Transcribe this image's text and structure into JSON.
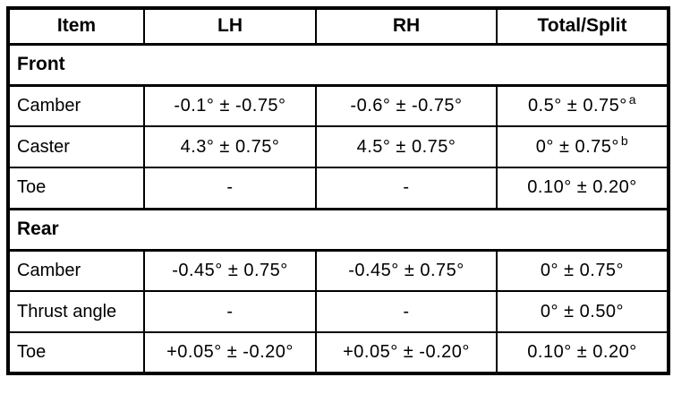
{
  "table": {
    "columns": {
      "item": "Item",
      "lh": "LH",
      "rh": "RH",
      "total": "Total/Split"
    },
    "sections": [
      {
        "label": "Front",
        "rows": [
          {
            "item": "Camber",
            "lh": "-0.1° ± -0.75°",
            "rh": "-0.6° ± -0.75°",
            "total": "0.5° ± 0.75°",
            "total_note": "a"
          },
          {
            "item": "Caster",
            "lh": "4.3° ± 0.75°",
            "rh": "4.5° ± 0.75°",
            "total": "0° ± 0.75°",
            "total_note": "b"
          },
          {
            "item": "Toe",
            "lh": "-",
            "rh": "-",
            "total": "0.10° ± 0.20°",
            "total_note": ""
          }
        ]
      },
      {
        "label": "Rear",
        "rows": [
          {
            "item": "Camber",
            "lh": "-0.45° ± 0.75°",
            "rh": "-0.45° ± 0.75°",
            "total": "0° ± 0.75°",
            "total_note": ""
          },
          {
            "item": "Thrust angle",
            "lh": "-",
            "rh": "-",
            "total": "0° ± 0.50°",
            "total_note": ""
          },
          {
            "item": "Toe",
            "lh": "+0.05° ± -0.20°",
            "rh": "+0.05° ± -0.20°",
            "total": "0.10° ± 0.20°",
            "total_note": ""
          }
        ]
      }
    ]
  }
}
